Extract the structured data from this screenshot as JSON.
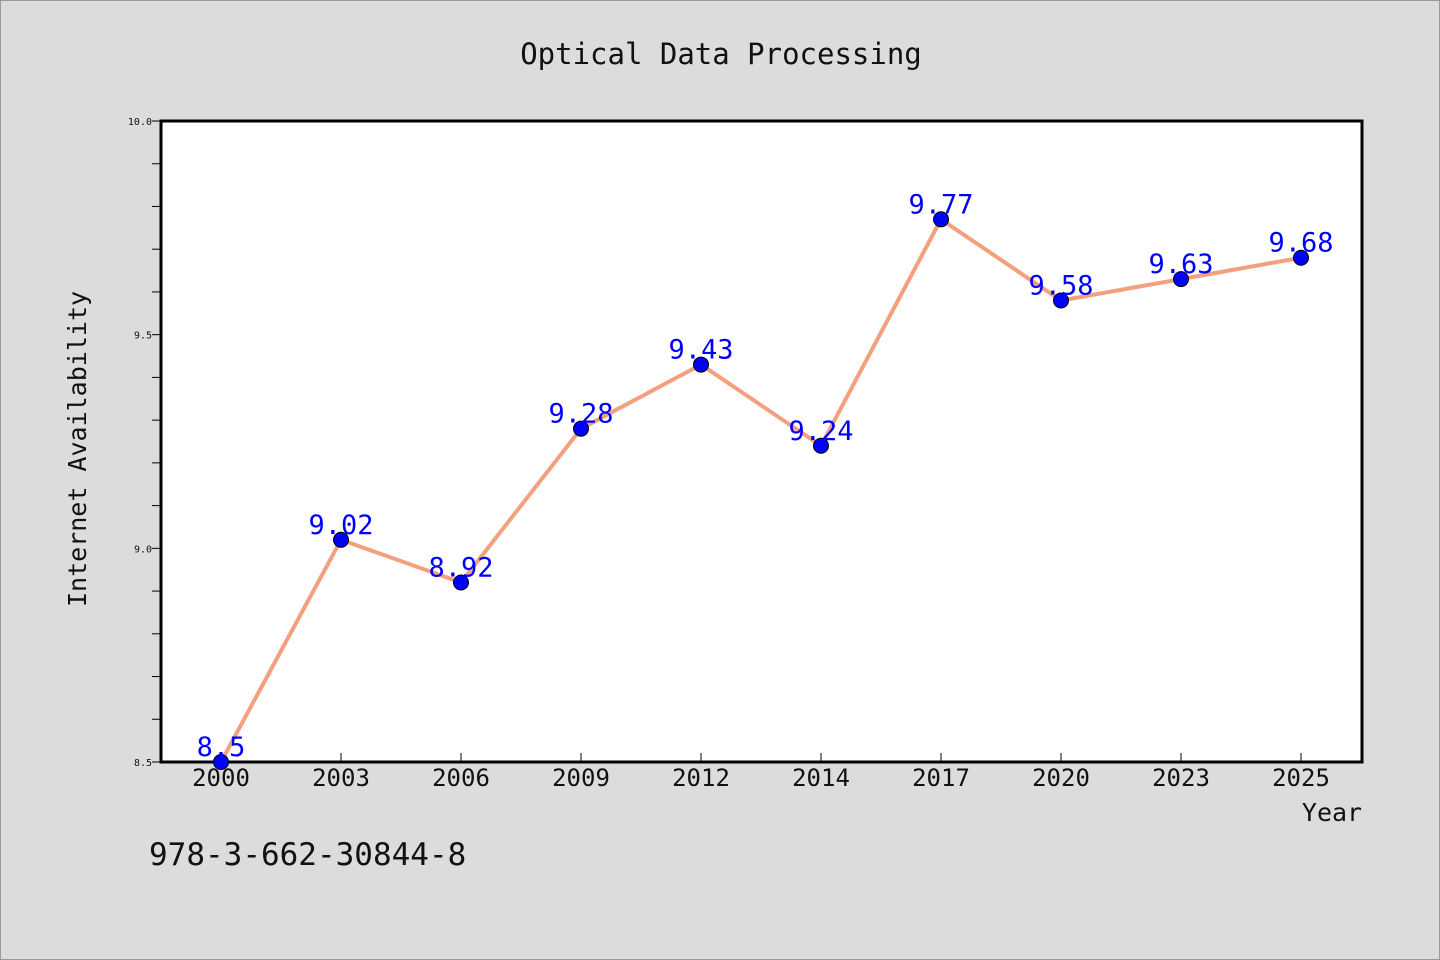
{
  "chart_data": {
    "type": "line",
    "title": "Optical Data Processing",
    "xlabel": "Year",
    "ylabel": "Internet Availability",
    "categories": [
      "2000",
      "2003",
      "2006",
      "2009",
      "2012",
      "2014",
      "2017",
      "2020",
      "2023",
      "2025"
    ],
    "series": [
      {
        "values": [
          8.5,
          9.02,
          8.92,
          9.28,
          9.43,
          9.24,
          9.77,
          9.58,
          9.63,
          9.68
        ],
        "data_labels": [
          "8.5",
          "9.02",
          "8.92",
          "9.28",
          "9.43",
          "9.24",
          "9.77",
          "9.58",
          "9.63",
          "9.68"
        ],
        "line_color": "#f4a07e",
        "marker_color": "#0000ff"
      }
    ],
    "ylim": [
      8.5,
      10.0
    ],
    "yticks": [
      "8.5",
      "9.0",
      "9.5",
      "10.0"
    ],
    "grid": false,
    "legend": "none"
  },
  "footer": {
    "isbn": "978-3-662-30844-8"
  },
  "colors": {
    "background": "#dcdcdc",
    "plot_background": "#ffffff",
    "line": "#f4a07e",
    "marker": "#0000ff",
    "data_label": "#0000ff"
  }
}
